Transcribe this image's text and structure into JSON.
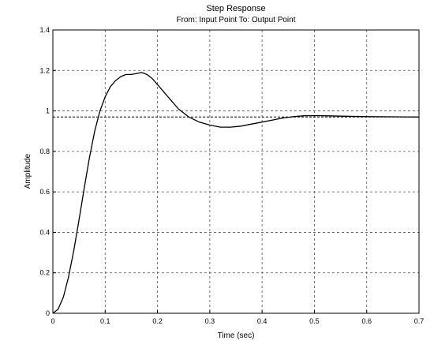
{
  "chart_data": {
    "type": "line",
    "title": "Step Response",
    "subtitle": "From: Input Point  To: Output Point",
    "xlabel": "Time (sec)",
    "ylabel": "Amplitude",
    "xlim": [
      0,
      0.7
    ],
    "ylim": [
      0,
      1.4
    ],
    "xticks": [
      0,
      0.1,
      0.2,
      0.3,
      0.4,
      0.5,
      0.6,
      0.7
    ],
    "xtick_labels": [
      "0",
      "0.1",
      "0.2",
      "0.3",
      "0.4",
      "0.5",
      "0.6",
      "0.7"
    ],
    "yticks": [
      0,
      0.2,
      0.4,
      0.6,
      0.8,
      1,
      1.2,
      1.4
    ],
    "ytick_labels": [
      "0",
      "0.2",
      "0.4",
      "0.6",
      "0.8",
      "1",
      "1.2",
      "1.4"
    ],
    "grid": true,
    "series": [
      {
        "x": [
          0,
          0.01,
          0.02,
          0.03,
          0.04,
          0.05,
          0.06,
          0.07,
          0.08,
          0.09,
          0.1,
          0.11,
          0.12,
          0.13,
          0.14,
          0.15,
          0.16,
          0.17,
          0.18,
          0.19,
          0.2,
          0.22,
          0.24,
          0.26,
          0.28,
          0.3,
          0.32,
          0.34,
          0.36,
          0.38,
          0.4,
          0.42,
          0.44,
          0.46,
          0.48,
          0.5,
          0.52,
          0.55,
          0.6,
          0.65,
          0.7
        ],
        "values": [
          0,
          0.02,
          0.08,
          0.18,
          0.31,
          0.46,
          0.62,
          0.77,
          0.9,
          1.0,
          1.07,
          1.12,
          1.15,
          1.17,
          1.18,
          1.18,
          1.185,
          1.19,
          1.18,
          1.16,
          1.13,
          1.07,
          1.01,
          0.97,
          0.945,
          0.93,
          0.92,
          0.92,
          0.925,
          0.935,
          0.945,
          0.955,
          0.965,
          0.972,
          0.976,
          0.977,
          0.976,
          0.974,
          0.972,
          0.971,
          0.97
        ]
      }
    ],
    "reference_lines": [
      {
        "axis": "y",
        "value": 0.97,
        "style": "dashed"
      }
    ]
  }
}
